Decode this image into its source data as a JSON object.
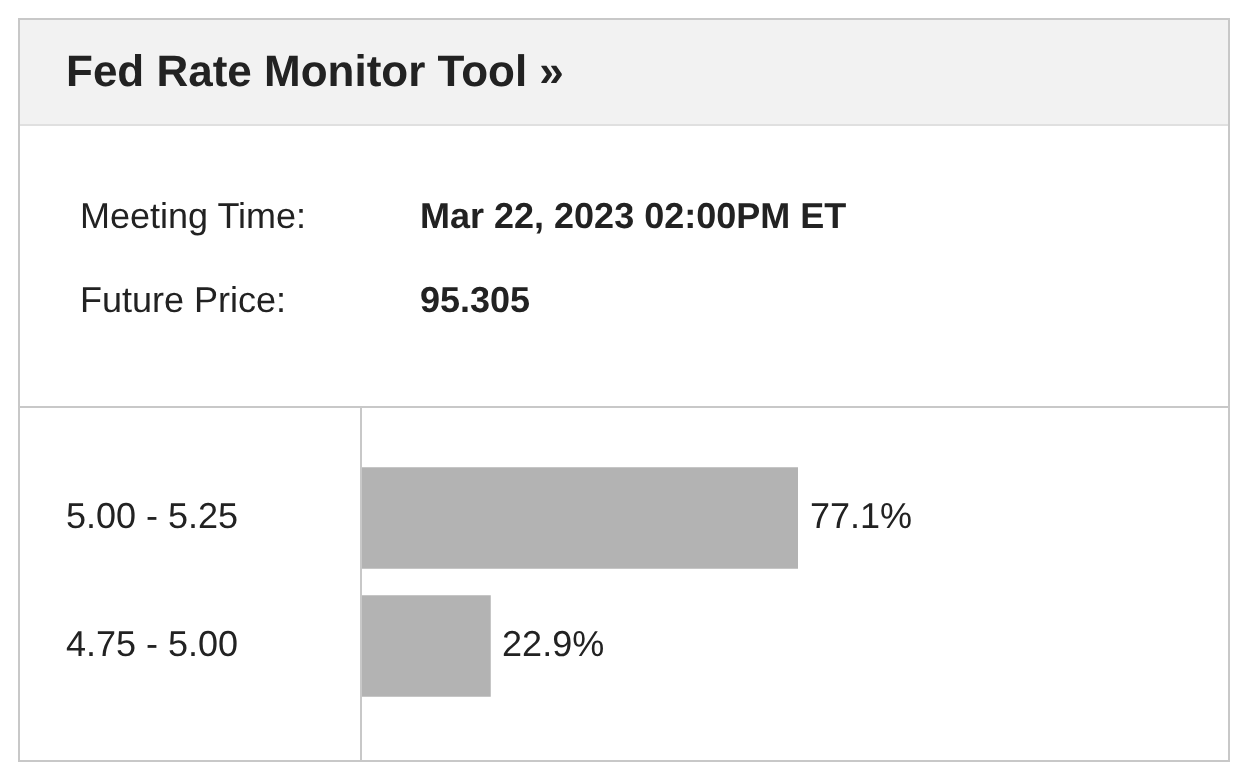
{
  "chart_data": {
    "type": "bar",
    "title": "Fed Rate Monitor Tool »",
    "annotations": [
      "Meeting Time:",
      "Mar 22, 2023 02:00PM ET",
      "Future Price:",
      "95.305"
    ],
    "orientation": "horizontal",
    "categories": [
      "5.00 - 5.25",
      "4.75 - 5.00"
    ],
    "values": [
      77.1,
      22.9
    ],
    "color": "#b3b3b3",
    "value_labels": [
      "77.1%",
      "22.9%"
    ],
    "tick_labels": "y",
    "grid": false,
    "legend": false
  }
}
